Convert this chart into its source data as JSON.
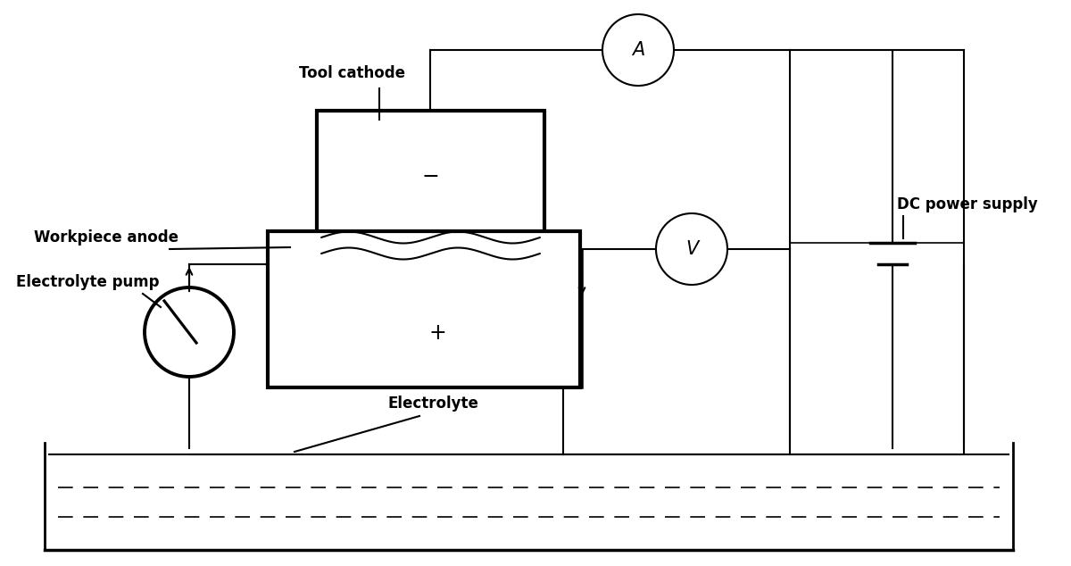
{
  "bg_color": "#ffffff",
  "line_color": "#000000",
  "thick_lw": 3.0,
  "thin_lw": 1.5,
  "labels": {
    "tool_cathode": "Tool cathode",
    "workpiece_anode": "Workpiece anode",
    "electrolyte_pump": "Electrolyte pump",
    "electrolyte": "Electrolyte",
    "dc_power_supply": "DC power supply",
    "ammeter": "A",
    "voltmeter": "V"
  },
  "font_size_labels": 12,
  "font_size_instruments": 15
}
